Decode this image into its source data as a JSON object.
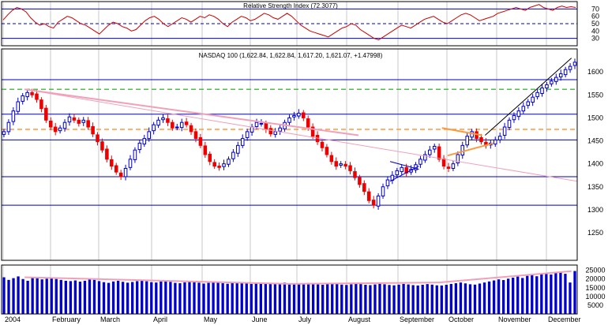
{
  "chart_data": [
    {
      "type": "line",
      "panel": "rsi",
      "title": "Relative Strength Index (72.3077)",
      "ylim": [
        20,
        80
      ],
      "y_ticks": [
        30,
        40,
        50,
        60,
        70
      ],
      "reference_lines": [
        {
          "value": 70,
          "style": "solid",
          "color": "#0000c0"
        },
        {
          "value": 50,
          "style": "dashed",
          "color": "#0000c0"
        },
        {
          "value": 30,
          "style": "solid",
          "color": "#0000c0"
        }
      ],
      "series": [
        {
          "color": "#cc0000",
          "values": [
            55,
            62,
            68,
            72,
            70,
            66,
            58,
            52,
            48,
            50,
            46,
            44,
            52,
            56,
            60,
            58,
            54,
            50,
            48,
            44,
            40,
            36,
            42,
            48,
            52,
            50,
            46,
            44,
            40,
            42,
            48,
            54,
            58,
            60,
            56,
            50,
            46,
            50,
            54,
            58,
            56,
            52,
            56,
            60,
            58,
            62,
            60,
            56,
            50,
            46,
            52,
            56,
            60,
            58,
            54,
            56,
            60,
            64,
            62,
            58,
            56,
            60,
            64,
            60,
            54,
            48,
            44,
            40,
            38,
            36,
            34,
            32,
            36,
            40,
            44,
            46,
            50,
            48,
            42,
            38,
            34,
            30,
            28,
            32,
            36,
            40,
            44,
            48,
            46,
            44,
            48,
            52,
            56,
            58,
            60,
            56,
            52,
            50,
            54,
            58,
            62,
            64,
            62,
            58,
            54,
            56,
            58,
            60,
            64,
            66,
            68,
            70,
            72,
            70,
            68,
            72,
            74,
            76,
            72,
            70,
            68,
            72,
            74,
            72,
            73,
            72
          ]
        }
      ]
    },
    {
      "type": "candlestick",
      "panel": "price",
      "title": "NASDAQ 100 (1,622.84, 1,622.84, 1,617.20, 1,621.07, +1.47998)",
      "ylim": [
        1190,
        1650
      ],
      "y_ticks": [
        1250,
        1300,
        1350,
        1400,
        1450,
        1500,
        1550,
        1600
      ],
      "x_month_labels": [
        "2004",
        "February",
        "March",
        "April",
        "May",
        "June",
        "July",
        "August",
        "September",
        "October",
        "November",
        "December"
      ],
      "close_series": [
        1470,
        1490,
        1515,
        1535,
        1548,
        1555,
        1550,
        1540,
        1520,
        1495,
        1480,
        1470,
        1478,
        1490,
        1502,
        1495,
        1488,
        1495,
        1480,
        1465,
        1448,
        1430,
        1410,
        1395,
        1382,
        1372,
        1390,
        1410,
        1430,
        1445,
        1455,
        1470,
        1485,
        1495,
        1500,
        1490,
        1478,
        1480,
        1490,
        1485,
        1470,
        1455,
        1440,
        1420,
        1405,
        1395,
        1392,
        1400,
        1410,
        1425,
        1440,
        1455,
        1470,
        1480,
        1490,
        1488,
        1475,
        1465,
        1470,
        1478,
        1490,
        1500,
        1505,
        1510,
        1500,
        1480,
        1460,
        1448,
        1435,
        1420,
        1405,
        1395,
        1400,
        1395,
        1385,
        1370,
        1355,
        1340,
        1320,
        1310,
        1330,
        1350,
        1365,
        1375,
        1385,
        1392,
        1380,
        1388,
        1398,
        1410,
        1420,
        1430,
        1438,
        1410,
        1395,
        1390,
        1400,
        1420,
        1440,
        1460,
        1470,
        1455,
        1448,
        1440,
        1445,
        1452,
        1460,
        1480,
        1495,
        1505,
        1515,
        1525,
        1535,
        1545,
        1555,
        1565,
        1572,
        1580,
        1588,
        1596,
        1605,
        1612,
        1621
      ],
      "horizontal_levels": [
        {
          "value": 1310,
          "style": "solid",
          "color": "#0000c0"
        },
        {
          "value": 1372,
          "style": "solid",
          "color": "#0000c0"
        },
        {
          "value": 1452,
          "style": "solid",
          "color": "#0000c0"
        },
        {
          "value": 1508,
          "style": "solid",
          "color": "#0000c0"
        },
        {
          "value": 1583,
          "style": "solid",
          "color": "#0000c0"
        },
        {
          "value": 1475,
          "style": "dashed",
          "color": "#ff9a3c"
        },
        {
          "value": 1562,
          "style": "dashed",
          "color": "#55bb55"
        }
      ],
      "trendlines": [
        {
          "color": "#f2a0b8",
          "width": 2,
          "from": {
            "x": 0.04,
            "y": 1562
          },
          "to": {
            "x": 0.62,
            "y": 1462
          }
        },
        {
          "color": "#f2a0b8",
          "width": 1,
          "from": {
            "x": 0.04,
            "y": 1562
          },
          "to": {
            "x": 1.0,
            "y": 1362
          }
        },
        {
          "color": "#000000",
          "width": 1,
          "from": {
            "x": 0.84,
            "y": 1462
          },
          "to": {
            "x": 0.99,
            "y": 1630
          }
        },
        {
          "color": "#ff9a3c",
          "width": 2,
          "from": {
            "x": 0.765,
            "y": 1478
          },
          "to": {
            "x": 0.835,
            "y": 1462
          }
        },
        {
          "color": "#ff9a3c",
          "width": 2,
          "from": {
            "x": 0.775,
            "y": 1418
          },
          "to": {
            "x": 0.855,
            "y": 1445
          }
        },
        {
          "color": "#0000c0",
          "width": 1,
          "from": {
            "x": 0.675,
            "y": 1362
          },
          "to": {
            "x": 0.725,
            "y": 1395
          }
        },
        {
          "color": "#0000c0",
          "width": 1,
          "from": {
            "x": 0.675,
            "y": 1405
          },
          "to": {
            "x": 0.725,
            "y": 1388
          }
        }
      ],
      "colors": {
        "up": "#0000cc",
        "down": "#ee0000"
      }
    },
    {
      "type": "bar",
      "panel": "volume",
      "ylim": [
        0,
        28000
      ],
      "y_ticks": [
        5000,
        10000,
        15000,
        20000,
        25000
      ],
      "values": [
        21000,
        19500,
        20500,
        21500,
        20000,
        19000,
        21000,
        20500,
        19800,
        20200,
        21000,
        20000,
        19500,
        19000,
        18800,
        19200,
        18500,
        19000,
        19800,
        19500,
        18800,
        18200,
        17800,
        18600,
        19000,
        18400,
        17900,
        18300,
        18800,
        19100,
        18700,
        18200,
        18000,
        18600,
        18900,
        18400,
        17800,
        17600,
        18100,
        18500,
        18200,
        17900,
        17400,
        17800,
        18300,
        18000,
        17600,
        17300,
        17700,
        18100,
        17800,
        17400,
        17200,
        17600,
        18000,
        17700,
        17300,
        17100,
        17500,
        17900,
        17600,
        17200,
        17000,
        17400,
        17700,
        17300,
        16900,
        16700,
        17100,
        17500,
        17200,
        16800,
        16600,
        17000,
        17400,
        17100,
        16700,
        16500,
        16900,
        17300,
        17000,
        16600,
        16400,
        16800,
        17200,
        16900,
        16500,
        16300,
        16700,
        17100,
        16800,
        16400,
        16300,
        16700,
        17200,
        17600,
        18000,
        17500,
        17000,
        16800,
        17400,
        18000,
        18600,
        19200,
        19800,
        19400,
        20200,
        20800,
        21400,
        20600,
        21800,
        22400,
        21600,
        22800,
        23400,
        22600,
        23800,
        24200,
        23000,
        18000,
        24600
      ],
      "color": "#0000cc",
      "trendlines": [
        {
          "color": "#f2a0b8",
          "width": 2,
          "from": {
            "x": 0.04,
            "y": 21000
          },
          "to": {
            "x": 0.5,
            "y": 17200
          }
        },
        {
          "color": "#f2a0b8",
          "width": 2,
          "from": {
            "x": 0.5,
            "y": 17200
          },
          "to": {
            "x": 0.76,
            "y": 18000
          }
        },
        {
          "color": "#f2a0b8",
          "width": 2,
          "from": {
            "x": 0.76,
            "y": 18000
          },
          "to": {
            "x": 0.99,
            "y": 24500
          }
        }
      ]
    }
  ]
}
